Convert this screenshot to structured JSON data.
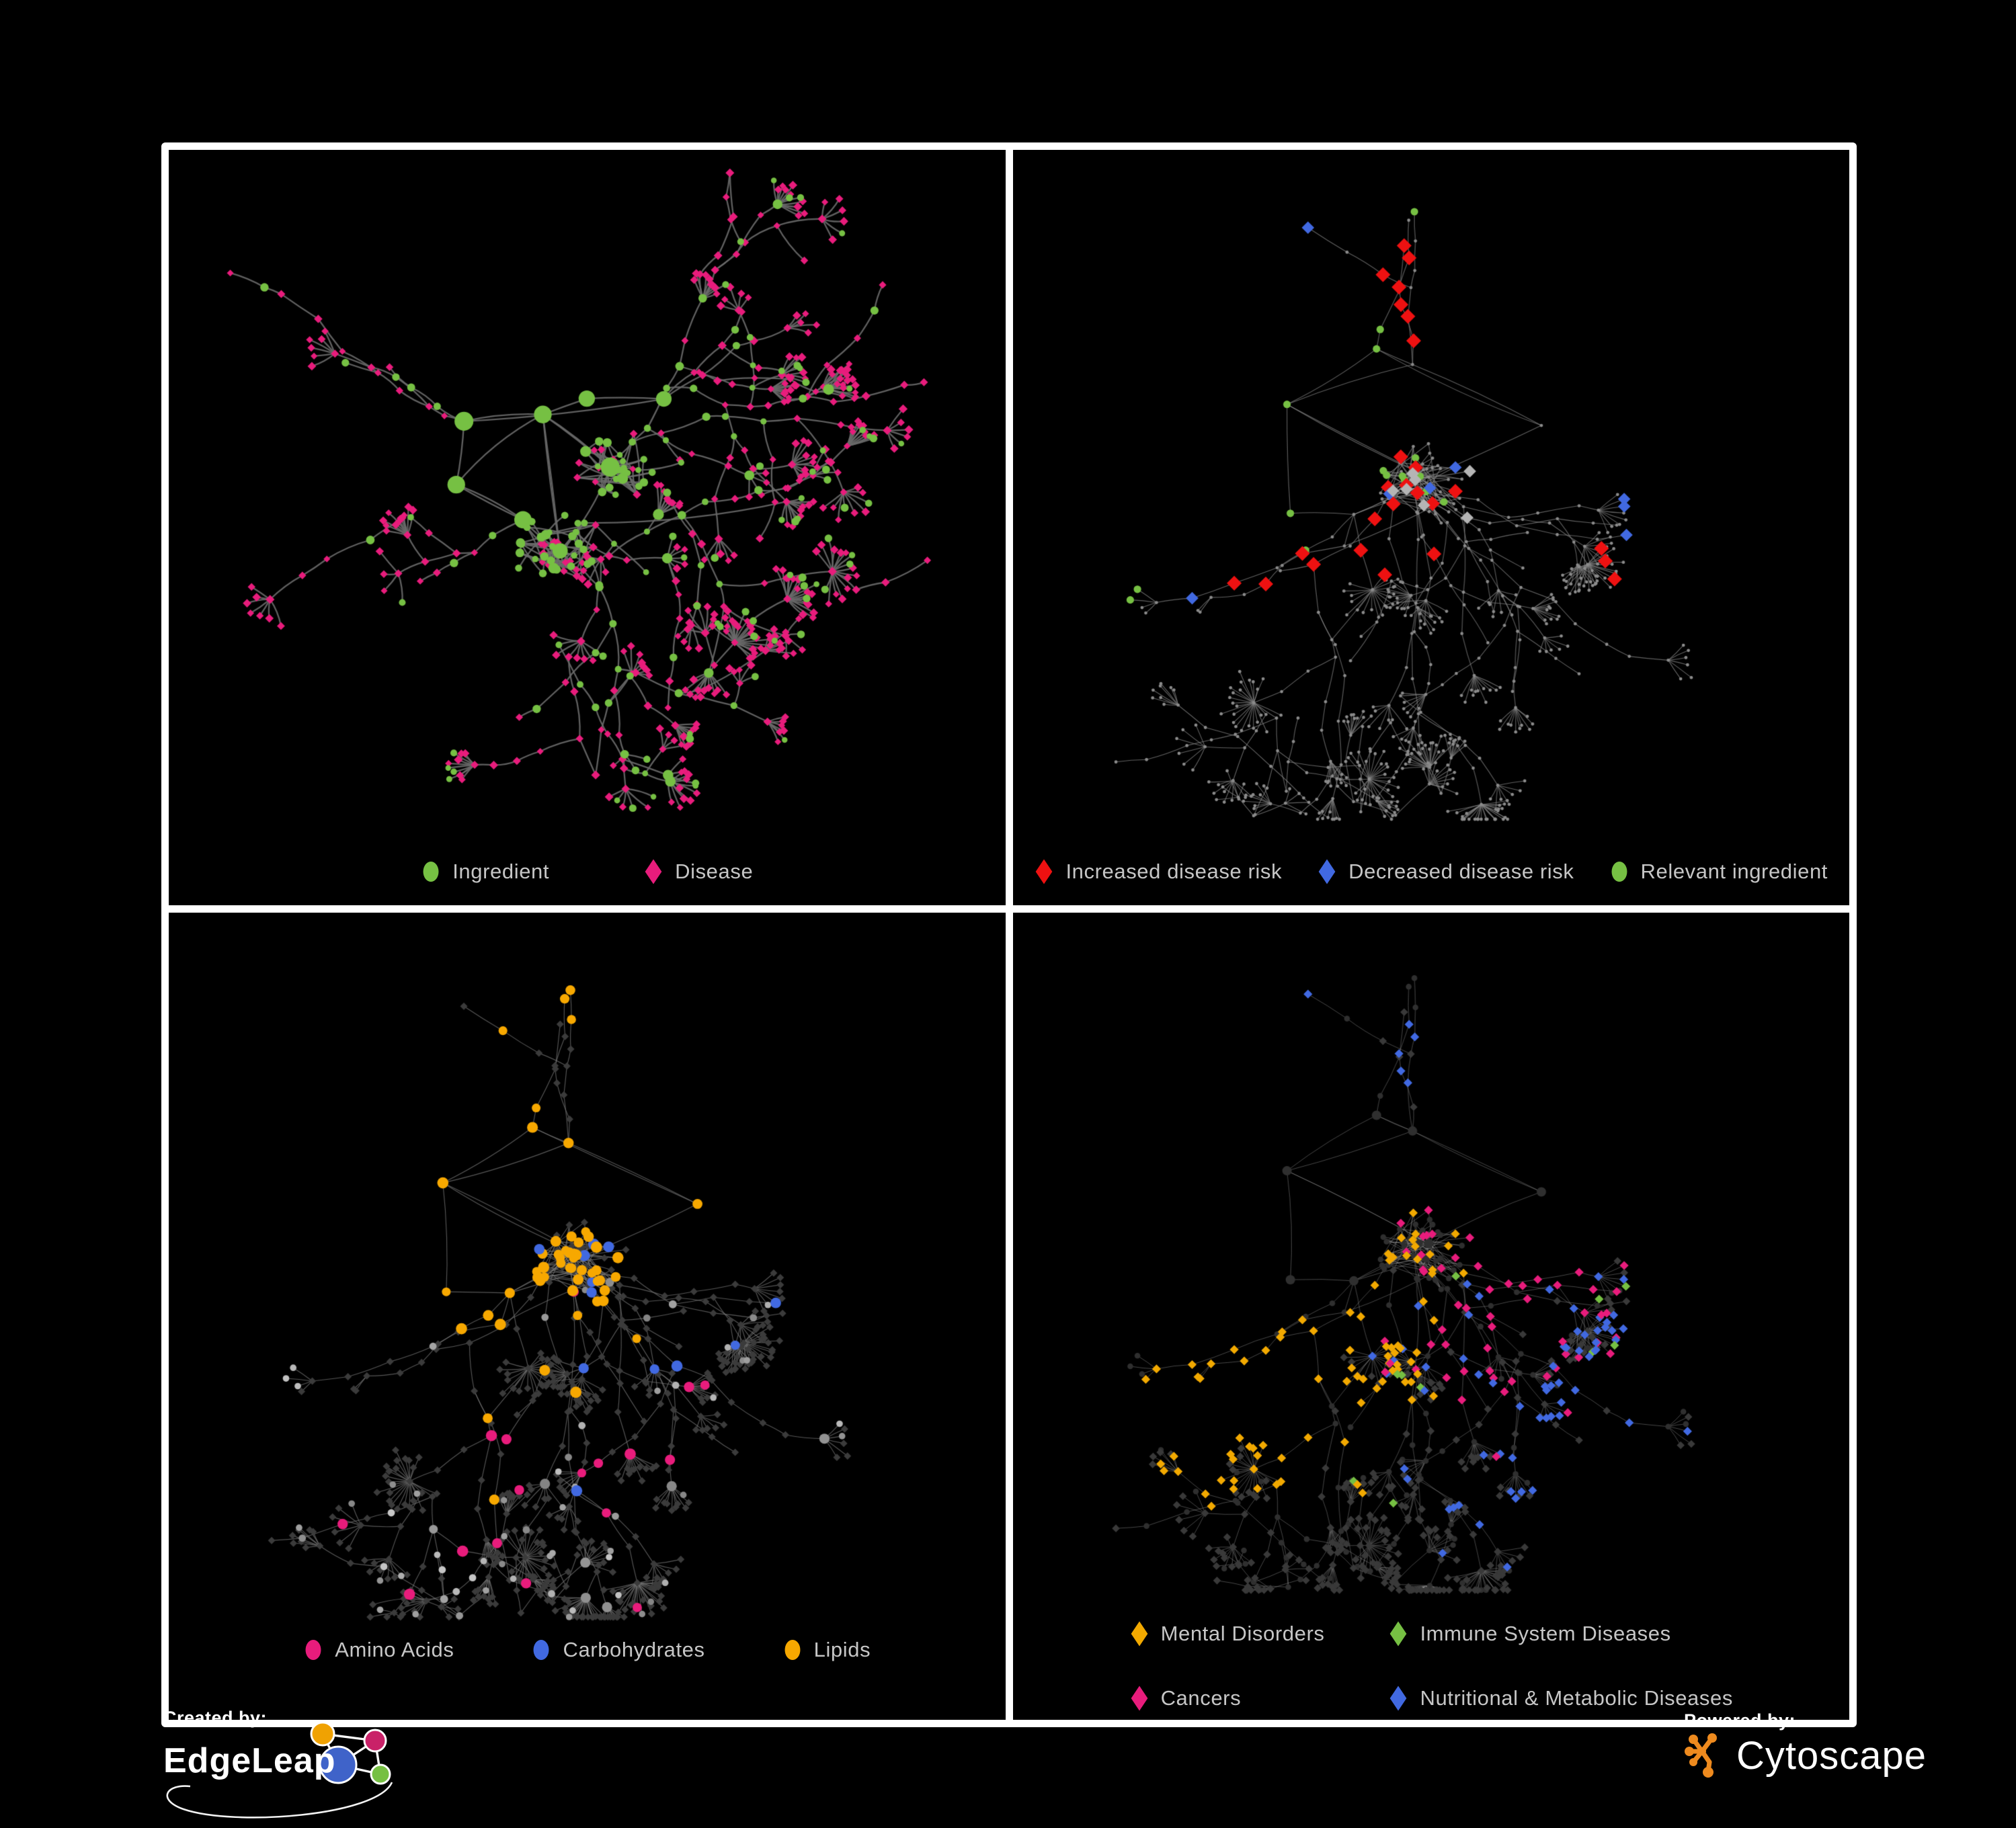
{
  "figure": {
    "background": "#000000",
    "panel_border_color": "#ffffff",
    "legend_text_color": "#c6c6c6"
  },
  "panels": [
    {
      "id": "ingredient-disease-network",
      "legend": [
        {
          "label": "Ingredient",
          "shape": "ellipse",
          "color": "#76c043"
        },
        {
          "label": "Disease",
          "shape": "diamond",
          "color": "#e81c7c"
        }
      ]
    },
    {
      "id": "disease-risk-network",
      "legend": [
        {
          "label": "Increased disease risk",
          "shape": "diamond",
          "color": "#ee1111"
        },
        {
          "label": "Decreased disease risk",
          "shape": "diamond",
          "color": "#4169e1"
        },
        {
          "label": "Relevant ingredient",
          "shape": "ellipse",
          "color": "#76c043"
        }
      ],
      "unlabeled_marker_color": "#b5b5b5"
    },
    {
      "id": "nutrient-class-network",
      "legend": [
        {
          "label": "Amino Acids",
          "shape": "ellipse",
          "color": "#e81c7c"
        },
        {
          "label": "Carbohydrates",
          "shape": "ellipse",
          "color": "#4169e1"
        },
        {
          "label": "Lipids",
          "shape": "ellipse",
          "color": "#f7a800"
        }
      ]
    },
    {
      "id": "disease-category-network",
      "legend": [
        {
          "label": "Mental Disorders",
          "shape": "diamond",
          "color": "#f2a900"
        },
        {
          "label": "Immune System Diseases",
          "shape": "diamond",
          "color": "#76c043"
        },
        {
          "label": "Cancers",
          "shape": "diamond",
          "color": "#e81c7c"
        },
        {
          "label": "Nutritional & Metabolic Diseases",
          "shape": "diamond",
          "color": "#4169e1"
        }
      ]
    }
  ],
  "footer": {
    "created_by": {
      "label": "Created by:",
      "brand": "EdgeLeap"
    },
    "powered_by": {
      "label": "Powered by:",
      "brand": "Cytoscape",
      "logo_color": "#ee8a1e"
    }
  }
}
